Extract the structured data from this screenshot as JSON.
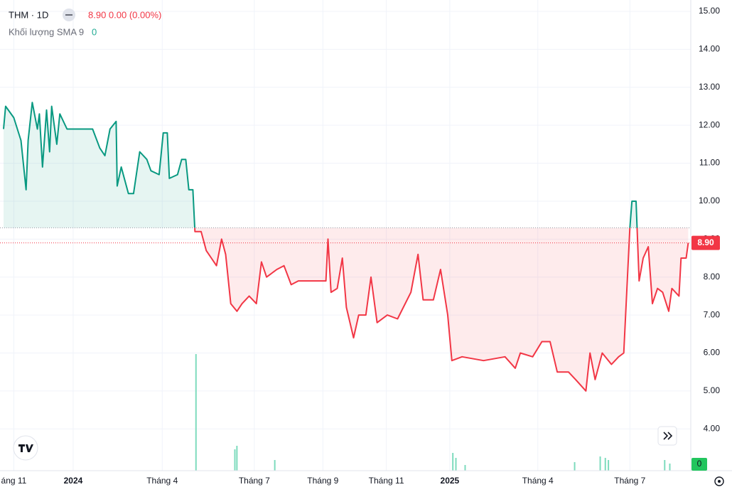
{
  "header": {
    "symbol": "THM · 1D",
    "quote": "8.90 0.00 (0.00%)",
    "volume_label": "Khối lượng SMA 9",
    "volume_value": "0"
  },
  "chart_data": {
    "type": "baseline",
    "x": [
      -68,
      -66,
      -58,
      -51,
      -46,
      -44,
      -40,
      -35,
      -33,
      -30,
      -26,
      -23,
      -21,
      -16,
      -13,
      -6,
      19,
      26,
      31,
      36,
      42,
      43,
      47,
      54,
      59,
      65,
      72,
      76,
      84,
      88,
      92,
      94,
      102,
      106,
      110,
      113,
      117,
      119,
      125,
      130,
      135,
      140,
      145,
      149,
      154,
      160,
      165,
      172,
      179,
      184,
      189,
      199,
      206,
      213,
      220,
      247,
      249,
      252,
      258,
      263,
      267,
      274,
      279,
      286,
      291,
      297,
      307,
      317,
      330,
      337,
      342,
      352,
      359,
      366,
      370,
      380,
      401,
      422,
      432,
      437,
      449,
      458,
      466,
      473,
      484,
      491,
      501,
      505,
      510,
      517,
      526,
      533,
      538,
      544,
      546,
      550,
      553,
      557,
      562,
      566,
      571,
      576,
      582,
      585,
      592,
      594,
      599,
      601
    ],
    "series": [
      {
        "name": "THM",
        "values": [
          11.9,
          12.5,
          12.2,
          11.6,
          10.3,
          11.6,
          12.6,
          11.9,
          12.3,
          10.9,
          12.4,
          11.3,
          12.5,
          11.5,
          12.3,
          11.9,
          11.9,
          11.4,
          11.2,
          11.9,
          12.1,
          10.4,
          10.9,
          10.2,
          10.2,
          11.3,
          11.1,
          10.8,
          10.7,
          11.8,
          11.8,
          10.6,
          10.7,
          11.1,
          11.1,
          10.3,
          10.3,
          9.2,
          9.2,
          8.7,
          8.5,
          8.3,
          9.0,
          8.6,
          7.3,
          7.1,
          7.3,
          7.5,
          7.3,
          8.4,
          8.0,
          8.2,
          8.3,
          7.8,
          7.9,
          7.9,
          9.0,
          7.6,
          7.7,
          8.5,
          7.2,
          6.4,
          7.0,
          7.0,
          8.0,
          6.8,
          7.0,
          6.9,
          7.6,
          8.6,
          7.4,
          7.4,
          8.2,
          7.0,
          5.8,
          5.9,
          5.8,
          5.9,
          5.6,
          6.0,
          5.9,
          6.3,
          6.3,
          5.5,
          5.5,
          5.3,
          5.0,
          6.0,
          5.3,
          6.0,
          5.7,
          5.9,
          6.0,
          9.3,
          10.0,
          10.0,
          7.9,
          8.5,
          8.8,
          7.3,
          7.7,
          7.6,
          7.1,
          7.7,
          7.5,
          8.5,
          8.5,
          8.9
        ]
      }
    ],
    "baseline": 9.3,
    "up_color": "#089981",
    "down_color": "#f23645",
    "last_price": {
      "value": 8.9,
      "label": "8.90"
    },
    "volume": {
      "x": [
        120,
        158,
        160,
        197,
        371,
        374,
        383,
        490,
        515,
        520,
        523,
        578,
        583
      ],
      "values": [
        164,
        30,
        35,
        15,
        25,
        18,
        8,
        12,
        20,
        18,
        15,
        15,
        10
      ],
      "ylim": [
        0,
        600
      ],
      "color": "#7ddbbd"
    },
    "xlim": [
      -71.5,
      603.5
    ],
    "xticks": [
      {
        "value": -58,
        "label": "áng 11"
      },
      {
        "value": 0,
        "label": "2024"
      },
      {
        "value": 87,
        "label": "Tháng 4"
      },
      {
        "value": 177,
        "label": "Tháng 7"
      },
      {
        "value": 244,
        "label": "Tháng 9"
      },
      {
        "value": 306,
        "label": "Tháng 11"
      },
      {
        "value": 368,
        "label": "2025"
      },
      {
        "value": 454,
        "label": "Tháng 4"
      },
      {
        "value": 544,
        "label": "Tháng 7"
      }
    ],
    "ylim": [
      2.9,
      15.3
    ],
    "yticks": [
      {
        "value": 4,
        "label": "4.00"
      },
      {
        "value": 5,
        "label": "5.00"
      },
      {
        "value": 6,
        "label": "6.00"
      },
      {
        "value": 7,
        "label": "7.00"
      },
      {
        "value": 8,
        "label": "8.00"
      },
      {
        "value": 9,
        "label": "9.00"
      },
      {
        "value": 10,
        "label": "10.00"
      },
      {
        "value": 11,
        "label": "11.00"
      },
      {
        "value": 12,
        "label": "12.00"
      },
      {
        "value": 13,
        "label": "13.00"
      },
      {
        "value": 14,
        "label": "14.00"
      },
      {
        "value": 15,
        "label": "15.00"
      }
    ],
    "grid": true
  }
}
